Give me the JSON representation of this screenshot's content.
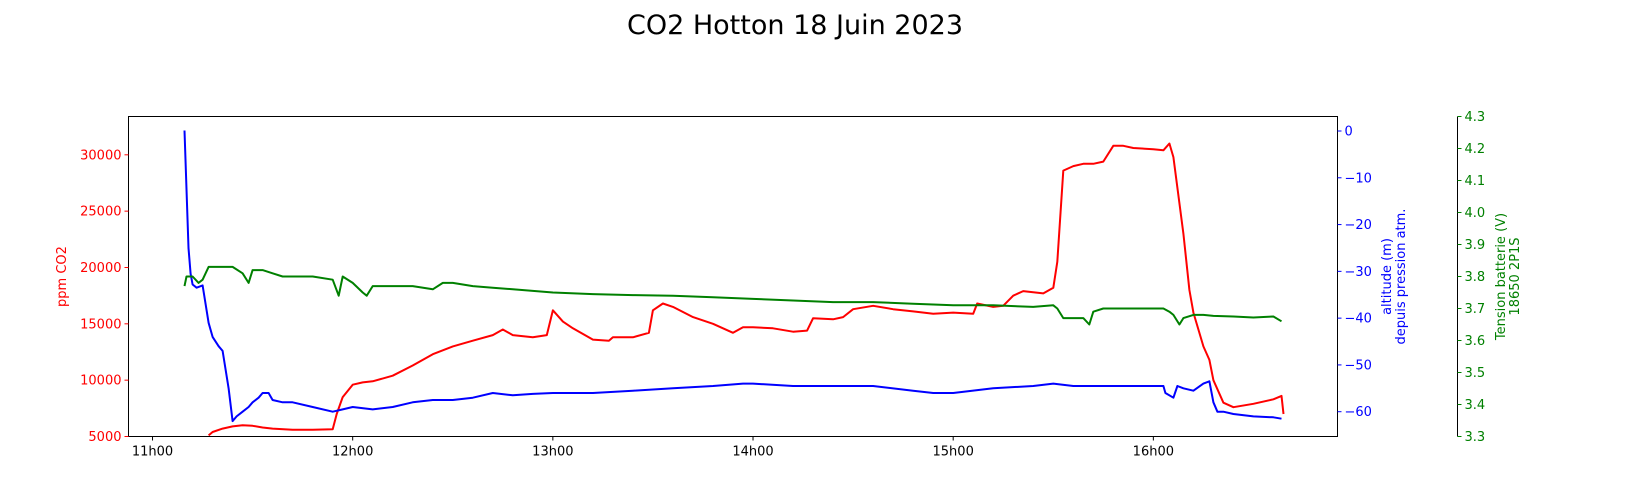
{
  "chart_data": {
    "type": "line",
    "title": "CO2 Hotton 18 Juin 2023",
    "xlabel": "",
    "xlim": [
      10.88,
      16.92
    ],
    "x_ticks": [
      11,
      12,
      13,
      14,
      15,
      16
    ],
    "x_tick_labels": [
      "11h00",
      "12h00",
      "13h00",
      "14h00",
      "15h00",
      "16h00"
    ],
    "axes": [
      {
        "id": "co2",
        "side": "left",
        "label": "ppm CO2",
        "color": "#ff0000",
        "ylim": [
          5000,
          33400
        ],
        "ticks": [
          5000,
          10000,
          15000,
          20000,
          25000,
          30000
        ],
        "tick_labels": [
          "5000",
          "10000",
          "15000",
          "20000",
          "25000",
          "30000"
        ]
      },
      {
        "id": "alt",
        "side": "right",
        "label_lines": [
          "altitude (m)",
          "depuis pression atm."
        ],
        "color": "#0000ff",
        "ylim": [
          -65.3,
          3.1
        ],
        "ticks": [
          -60,
          -50,
          -40,
          -30,
          -20,
          -10,
          0
        ],
        "tick_labels": [
          "−60",
          "−50",
          "−40",
          "−30",
          "−20",
          "−10",
          "0"
        ]
      },
      {
        "id": "volt",
        "side": "right-offset",
        "label_lines": [
          "Tension batterie (V)",
          "18650 2P1S"
        ],
        "color": "#008000",
        "ylim": [
          3.3,
          4.3
        ],
        "ticks": [
          3.3,
          3.4,
          3.5,
          3.6,
          3.7,
          3.8,
          3.9,
          4.0,
          4.1,
          4.2,
          4.3
        ],
        "tick_labels": [
          "3.3",
          "3.4",
          "3.5",
          "3.6",
          "3.7",
          "3.8",
          "3.9",
          "4.0",
          "4.1",
          "4.2",
          "4.3"
        ]
      }
    ],
    "series": [
      {
        "axis": "co2",
        "color": "#ff0000",
        "x": [
          11.28,
          11.3,
          11.35,
          11.4,
          11.45,
          11.5,
          11.55,
          11.6,
          11.7,
          11.8,
          11.9,
          11.92,
          11.95,
          12.0,
          12.05,
          12.1,
          12.2,
          12.3,
          12.4,
          12.5,
          12.6,
          12.7,
          12.75,
          12.8,
          12.9,
          12.97,
          13.0,
          13.05,
          13.1,
          13.2,
          13.28,
          13.3,
          13.4,
          13.48,
          13.5,
          13.55,
          13.6,
          13.7,
          13.8,
          13.9,
          13.95,
          14.0,
          14.1,
          14.2,
          14.27,
          14.3,
          14.4,
          14.45,
          14.5,
          14.6,
          14.7,
          14.8,
          14.9,
          15.0,
          15.1,
          15.12,
          15.2,
          15.25,
          15.3,
          15.35,
          15.4,
          15.45,
          15.5,
          15.52,
          15.55,
          15.6,
          15.65,
          15.7,
          15.75,
          15.8,
          15.85,
          15.9,
          16.0,
          16.05,
          16.08,
          16.1,
          16.15,
          16.18,
          16.2,
          16.25,
          16.28,
          16.3,
          16.35,
          16.4,
          16.5,
          16.6,
          16.64,
          16.65
        ],
        "y": [
          5100,
          5400,
          5700,
          5900,
          6000,
          5950,
          5800,
          5700,
          5600,
          5600,
          5650,
          7000,
          8500,
          9600,
          9800,
          9900,
          10400,
          11300,
          12300,
          13000,
          13500,
          14000,
          14500,
          14000,
          13800,
          14000,
          16200,
          15200,
          14600,
          13600,
          13500,
          13800,
          13800,
          14200,
          16200,
          16800,
          16500,
          15600,
          15000,
          14200,
          14700,
          14700,
          14600,
          14300,
          14400,
          15500,
          15400,
          15600,
          16300,
          16600,
          16300,
          16100,
          15900,
          16000,
          15900,
          16800,
          16500,
          16600,
          17500,
          17900,
          17800,
          17700,
          18200,
          20500,
          28600,
          29000,
          29200,
          29200,
          29400,
          30800,
          30800,
          30600,
          30500,
          30400,
          31000,
          29800,
          23000,
          18000,
          16000,
          13000,
          11800,
          10000,
          8000,
          7600,
          7900,
          8300,
          8600,
          7000
        ]
      },
      {
        "axis": "alt",
        "color": "#0000ff",
        "x": [
          11.16,
          11.18,
          11.19,
          11.2,
          11.22,
          11.25,
          11.28,
          11.3,
          11.33,
          11.35,
          11.38,
          11.4,
          11.42,
          11.45,
          11.48,
          11.5,
          11.53,
          11.55,
          11.58,
          11.6,
          11.65,
          11.7,
          11.8,
          11.9,
          11.95,
          12.0,
          12.1,
          12.2,
          12.3,
          12.4,
          12.5,
          12.6,
          12.7,
          12.8,
          12.9,
          13.0,
          13.2,
          13.4,
          13.6,
          13.8,
          13.95,
          14.0,
          14.2,
          14.4,
          14.6,
          14.8,
          14.9,
          15.0,
          15.2,
          15.4,
          15.5,
          15.6,
          15.7,
          15.8,
          15.9,
          16.0,
          16.05,
          16.06,
          16.1,
          16.12,
          16.15,
          16.2,
          16.25,
          16.28,
          16.3,
          16.32,
          16.35,
          16.4,
          16.5,
          16.6,
          16.64
        ],
        "y": [
          0.1,
          -25,
          -30.5,
          -32.8,
          -33.5,
          -33,
          -41,
          -44,
          -46,
          -47,
          -55,
          -62,
          -61,
          -60,
          -59,
          -58,
          -57,
          -56,
          -56,
          -57.5,
          -58,
          -58,
          -59,
          -60,
          -59.5,
          -59,
          -59.5,
          -59,
          -58,
          -57.5,
          -57.5,
          -57,
          -56,
          -56.5,
          -56.2,
          -56,
          -56,
          -55.5,
          -55,
          -54.5,
          -54,
          -54,
          -54.5,
          -54.5,
          -54.5,
          -55.5,
          -56,
          -56,
          -55,
          -54.5,
          -54,
          -54.5,
          -54.5,
          -54.5,
          -54.5,
          -54.5,
          -54.5,
          -56,
          -57,
          -54.5,
          -55,
          -55.5,
          -54,
          -53.5,
          -58,
          -60,
          -60,
          -60.5,
          -61,
          -61.2,
          -61.5
        ]
      },
      {
        "axis": "volt",
        "color": "#008000",
        "x": [
          11.16,
          11.17,
          11.2,
          11.23,
          11.25,
          11.28,
          11.3,
          11.35,
          11.4,
          11.45,
          11.48,
          11.5,
          11.55,
          11.6,
          11.65,
          11.7,
          11.8,
          11.9,
          11.93,
          11.95,
          12.0,
          12.05,
          12.07,
          12.1,
          12.2,
          12.3,
          12.4,
          12.45,
          12.5,
          12.6,
          12.7,
          12.8,
          12.9,
          13.0,
          13.2,
          13.4,
          13.6,
          13.8,
          14.0,
          14.2,
          14.4,
          14.6,
          14.8,
          15.0,
          15.2,
          15.4,
          15.5,
          15.52,
          15.55,
          15.6,
          15.65,
          15.68,
          15.7,
          15.75,
          15.8,
          15.9,
          16.0,
          16.05,
          16.08,
          16.1,
          16.13,
          16.15,
          16.2,
          16.25,
          16.3,
          16.4,
          16.5,
          16.6,
          16.64
        ],
        "y": [
          3.77,
          3.8,
          3.8,
          3.78,
          3.79,
          3.83,
          3.83,
          3.83,
          3.83,
          3.81,
          3.78,
          3.82,
          3.82,
          3.81,
          3.8,
          3.8,
          3.8,
          3.79,
          3.74,
          3.8,
          3.78,
          3.75,
          3.74,
          3.77,
          3.77,
          3.77,
          3.76,
          3.78,
          3.78,
          3.77,
          3.765,
          3.76,
          3.755,
          3.75,
          3.745,
          3.742,
          3.74,
          3.735,
          3.73,
          3.725,
          3.72,
          3.72,
          3.715,
          3.71,
          3.71,
          3.705,
          3.71,
          3.7,
          3.67,
          3.67,
          3.67,
          3.65,
          3.69,
          3.7,
          3.7,
          3.7,
          3.7,
          3.7,
          3.69,
          3.68,
          3.65,
          3.67,
          3.68,
          3.68,
          3.677,
          3.675,
          3.672,
          3.675,
          3.66
        ]
      }
    ]
  }
}
